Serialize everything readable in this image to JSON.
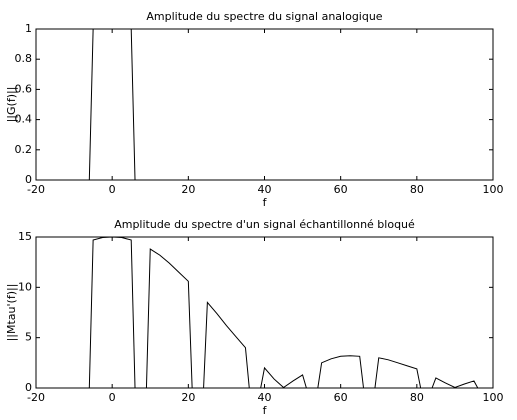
{
  "chart_data": [
    {
      "type": "line",
      "title": "Amplitude du spectre du signal analogique",
      "x_label": "f",
      "y_label": "||G(f)||",
      "x": [
        -20,
        -6,
        -5,
        5,
        6,
        100
      ],
      "values": [
        0,
        0,
        1,
        1,
        0,
        0
      ],
      "color": "#000000",
      "xlim": [
        -20,
        100
      ],
      "xticks": [
        -20,
        0,
        20,
        40,
        60,
        80,
        100
      ],
      "ylim": [
        0,
        1
      ],
      "yticks": [
        0,
        0.2,
        0.4,
        0.6,
        0.8,
        1
      ]
    },
    {
      "type": "line",
      "title": "Amplitude du spectre d'un signal échantillonné bloqué",
      "x_label": "f",
      "y_label": "||Mtau'(f)||",
      "x": [
        -20,
        -6,
        -5,
        -2.5,
        0,
        2.5,
        5,
        6,
        9,
        10,
        12.5,
        15,
        17.5,
        20,
        21,
        24,
        25,
        27.5,
        30,
        32.5,
        35,
        36,
        39,
        40,
        42.5,
        45,
        47.5,
        50,
        51,
        54,
        55,
        57.5,
        60,
        62.5,
        65,
        66,
        69,
        70,
        72.5,
        75,
        77.5,
        80,
        81,
        84,
        85,
        87.5,
        90,
        92.5,
        95,
        96,
        100
      ],
      "values": [
        0,
        0,
        14.7,
        14.95,
        15,
        14.95,
        14.7,
        0,
        0,
        13.8,
        13.2,
        12.4,
        11.5,
        10.6,
        0,
        0,
        8.5,
        7.4,
        6.2,
        5.1,
        4.0,
        0,
        0,
        2.0,
        0.9,
        0.05,
        0.7,
        1.3,
        0,
        0,
        2.5,
        2.9,
        3.15,
        3.2,
        3.15,
        0,
        0,
        3.0,
        2.8,
        2.5,
        2.2,
        1.9,
        0,
        0,
        1.0,
        0.5,
        0.05,
        0.4,
        0.7,
        0,
        0
      ],
      "color": "#000000",
      "xlim": [
        -20,
        100
      ],
      "xticks": [
        -20,
        0,
        20,
        40,
        60,
        80,
        100
      ],
      "ylim": [
        0,
        15
      ],
      "yticks": [
        0,
        5,
        10,
        15
      ]
    }
  ]
}
